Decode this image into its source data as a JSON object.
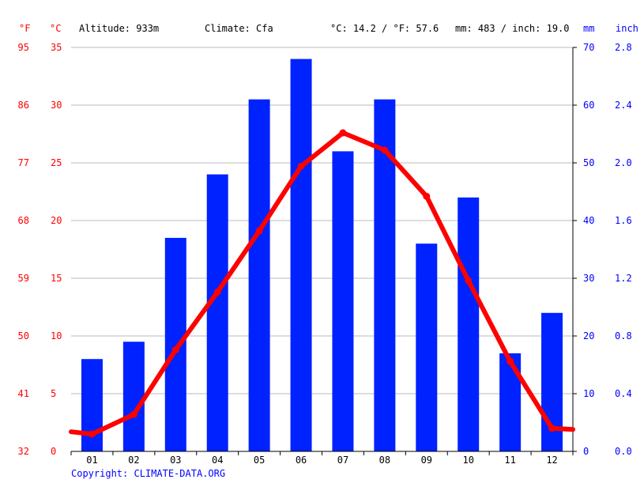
{
  "header": {
    "unit_f": "°F",
    "unit_c": "°C",
    "altitude": "Altitude: 933m",
    "climate": "Climate: Cfa",
    "temp_summary": "°C: 14.2 / °F: 57.6",
    "precip_summary": "mm: 483 / inch: 19.0",
    "unit_mm": "mm",
    "unit_inch": "inch"
  },
  "footer": {
    "copyright": "Copyright: CLIMATE-DATA.ORG"
  },
  "colors": {
    "temperature": "#ff0000",
    "precipitation": "#0022ff",
    "grid": "#bbbbbb",
    "axis": "#000000"
  },
  "chart_data": {
    "type": "bar",
    "categories": [
      "01",
      "02",
      "03",
      "04",
      "05",
      "06",
      "07",
      "08",
      "09",
      "10",
      "11",
      "12"
    ],
    "series": [
      {
        "type": "bar",
        "axis": "right",
        "unit": "mm",
        "values": [
          16,
          19,
          37,
          48,
          61,
          68,
          52,
          61,
          36,
          44,
          17,
          24
        ]
      },
      {
        "type": "line",
        "axis": "left",
        "unit": "°C",
        "values": [
          1.5,
          3.2,
          8.8,
          13.8,
          19.1,
          24.7,
          27.6,
          26.1,
          22.1,
          14.8,
          7.8,
          2.0
        ]
      }
    ],
    "y_left_c": {
      "range": [
        0,
        35
      ],
      "ticks": [
        "0",
        "5",
        "10",
        "15",
        "20",
        "25",
        "30",
        "35"
      ]
    },
    "y_left_f": {
      "ticks": [
        "32",
        "41",
        "50",
        "59",
        "68",
        "77",
        "86",
        "95"
      ]
    },
    "y_right_mm": {
      "range": [
        0,
        70
      ],
      "ticks": [
        "0",
        "10",
        "20",
        "30",
        "40",
        "50",
        "60",
        "70"
      ]
    },
    "y_right_inch": {
      "ticks": [
        "0.0",
        "0.4",
        "0.8",
        "1.2",
        "1.6",
        "2.0",
        "2.4",
        "2.8"
      ]
    },
    "grid": true
  }
}
